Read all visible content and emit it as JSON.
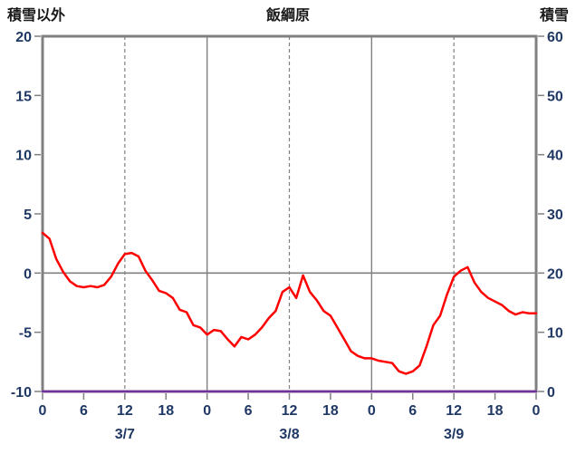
{
  "chart_data": {
    "type": "line",
    "title": "飯綱原",
    "left_axis": {
      "label": "積雪以外",
      "min": -10,
      "max": 20,
      "ticks": [
        20,
        15,
        10,
        5,
        0,
        -5,
        -10
      ]
    },
    "right_axis": {
      "label": "積雪",
      "min": 0,
      "max": 60,
      "ticks": [
        60,
        50,
        40,
        30,
        20,
        10,
        0
      ]
    },
    "x_axis": {
      "min_hour": 0,
      "max_hour": 72,
      "tick_hours": [
        0,
        6,
        12,
        18,
        24,
        30,
        36,
        42,
        48,
        54,
        60,
        66,
        72
      ],
      "tick_labels": [
        "0",
        "6",
        "12",
        "18",
        "0",
        "6",
        "12",
        "18",
        "0",
        "6",
        "12",
        "18",
        "0"
      ],
      "solid_grid_hours": [
        24,
        48
      ],
      "dashed_grid_hours": [
        12,
        36,
        60
      ],
      "day_labels": [
        {
          "label": "3/7",
          "hour": 12
        },
        {
          "label": "3/8",
          "hour": 36
        },
        {
          "label": "3/9",
          "hour": 60
        }
      ]
    },
    "horizontal_gridline_values": [
      0
    ],
    "series": [
      {
        "key": "non-snow-line",
        "name": "積雪以外",
        "axis": "left",
        "color": "#ff0000",
        "x_start_hour": 0,
        "x_step_hours": 1,
        "values": [
          3.4,
          2.9,
          1.2,
          0.1,
          -0.7,
          -1.1,
          -1.2,
          -1.1,
          -1.2,
          -1.0,
          -0.3,
          0.8,
          1.6,
          1.7,
          1.4,
          0.2,
          -0.6,
          -1.5,
          -1.7,
          -2.1,
          -3.1,
          -3.3,
          -4.4,
          -4.6,
          -5.2,
          -4.8,
          -4.9,
          -5.6,
          -6.2,
          -5.4,
          -5.6,
          -5.2,
          -4.6,
          -3.8,
          -3.2,
          -1.6,
          -1.2,
          -2.1,
          -0.2,
          -1.6,
          -2.3,
          -3.2,
          -3.6,
          -4.6,
          -5.6,
          -6.6,
          -7.0,
          -7.2,
          -7.2,
          -7.4,
          -7.5,
          -7.6,
          -8.3,
          -8.5,
          -8.3,
          -7.8,
          -6.2,
          -4.4,
          -3.6,
          -1.8,
          -0.3,
          0.2,
          0.5,
          -0.8,
          -1.6,
          -2.1,
          -2.4,
          -2.7,
          -3.2,
          -3.5,
          -3.3,
          -3.4,
          -3.4
        ]
      },
      {
        "key": "snow-line",
        "name": "積雪",
        "axis": "right",
        "color": "#7030a0",
        "x_hours": [
          0,
          72
        ],
        "values": [
          0,
          0
        ]
      }
    ],
    "style": {
      "grid_color": "#808080",
      "border_color": "#808080",
      "tick_text_color": "#1f3864",
      "header_text_color": "#1a1a1a",
      "background": "#ffffff"
    }
  }
}
